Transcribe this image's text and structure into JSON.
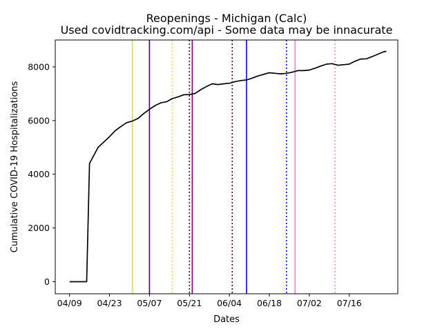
{
  "chart_data": {
    "type": "line",
    "title": "Reopenings - Michigan (Calc)",
    "subtitle": "Used covidtracking.com/api - Some data may be innacurate",
    "xlabel": "Dates",
    "ylabel": "Cumulative COVID-19 Hospitalizations",
    "x_range": [
      "2020-04-04",
      "2020-08-02"
    ],
    "ylim": [
      -450,
      9000
    ],
    "x_ticks": [
      {
        "date": "2020-04-09",
        "label": "04/09"
      },
      {
        "date": "2020-04-23",
        "label": "04/23"
      },
      {
        "date": "2020-05-07",
        "label": "05/07"
      },
      {
        "date": "2020-05-21",
        "label": "05/21"
      },
      {
        "date": "2020-06-04",
        "label": "06/04"
      },
      {
        "date": "2020-06-18",
        "label": "06/18"
      },
      {
        "date": "2020-07-02",
        "label": "07/02"
      },
      {
        "date": "2020-07-16",
        "label": "07/16"
      }
    ],
    "y_ticks": [
      0,
      2000,
      4000,
      6000,
      8000
    ],
    "grid": false,
    "series": [
      {
        "color": "#000000",
        "points": [
          [
            "2020-04-09",
            0
          ],
          [
            "2020-04-15",
            0
          ],
          [
            "2020-04-16",
            4400
          ],
          [
            "2020-04-17",
            4600
          ],
          [
            "2020-04-19",
            5000
          ],
          [
            "2020-04-21",
            5200
          ],
          [
            "2020-04-23",
            5400
          ],
          [
            "2020-04-25",
            5620
          ],
          [
            "2020-04-27",
            5780
          ],
          [
            "2020-04-29",
            5920
          ],
          [
            "2020-05-01",
            5980
          ],
          [
            "2020-05-03",
            6080
          ],
          [
            "2020-05-05",
            6260
          ],
          [
            "2020-05-07",
            6420
          ],
          [
            "2020-05-09",
            6560
          ],
          [
            "2020-05-11",
            6660
          ],
          [
            "2020-05-13",
            6700
          ],
          [
            "2020-05-15",
            6820
          ],
          [
            "2020-05-17",
            6880
          ],
          [
            "2020-05-19",
            6960
          ],
          [
            "2020-05-21",
            6970
          ],
          [
            "2020-05-23",
            7010
          ],
          [
            "2020-05-25",
            7150
          ],
          [
            "2020-05-27",
            7270
          ],
          [
            "2020-05-29",
            7370
          ],
          [
            "2020-05-31",
            7340
          ],
          [
            "2020-06-02",
            7370
          ],
          [
            "2020-06-04",
            7390
          ],
          [
            "2020-06-06",
            7450
          ],
          [
            "2020-06-08",
            7490
          ],
          [
            "2020-06-10",
            7510
          ],
          [
            "2020-06-12",
            7580
          ],
          [
            "2020-06-14",
            7660
          ],
          [
            "2020-06-16",
            7720
          ],
          [
            "2020-06-18",
            7780
          ],
          [
            "2020-06-20",
            7760
          ],
          [
            "2020-06-22",
            7740
          ],
          [
            "2020-06-24",
            7760
          ],
          [
            "2020-06-26",
            7800
          ],
          [
            "2020-06-28",
            7860
          ],
          [
            "2020-06-30",
            7860
          ],
          [
            "2020-07-02",
            7880
          ],
          [
            "2020-07-04",
            7950
          ],
          [
            "2020-07-06",
            8030
          ],
          [
            "2020-07-08",
            8100
          ],
          [
            "2020-07-10",
            8120
          ],
          [
            "2020-07-12",
            8060
          ],
          [
            "2020-07-14",
            8080
          ],
          [
            "2020-07-16",
            8100
          ],
          [
            "2020-07-18",
            8210
          ],
          [
            "2020-07-20",
            8290
          ],
          [
            "2020-07-22",
            8300
          ],
          [
            "2020-07-24",
            8380
          ],
          [
            "2020-07-26",
            8470
          ],
          [
            "2020-07-28",
            8560
          ],
          [
            "2020-07-29",
            8580
          ]
        ]
      }
    ],
    "vertical_markers": [
      {
        "date": "2020-05-01",
        "color": "#ffd700",
        "style": "solid"
      },
      {
        "date": "2020-05-07",
        "color": "#4b0082",
        "style": "solid"
      },
      {
        "date": "2020-05-15",
        "color": "#ffd700",
        "style": "dotted"
      },
      {
        "date": "2020-05-21",
        "color": "#4b0082",
        "style": "dotted"
      },
      {
        "date": "2020-05-22",
        "color": "#800080",
        "style": "solid"
      },
      {
        "date": "2020-06-05",
        "color": "#4b0000",
        "style": "dotted"
      },
      {
        "date": "2020-06-10",
        "color": "#0000ff",
        "style": "solid"
      },
      {
        "date": "2020-06-24",
        "color": "#0000ff",
        "style": "dotted"
      },
      {
        "date": "2020-06-27",
        "color": "#ee82ee",
        "style": "solid"
      },
      {
        "date": "2020-07-11",
        "color": "#ee82ee",
        "style": "dotted"
      }
    ]
  }
}
